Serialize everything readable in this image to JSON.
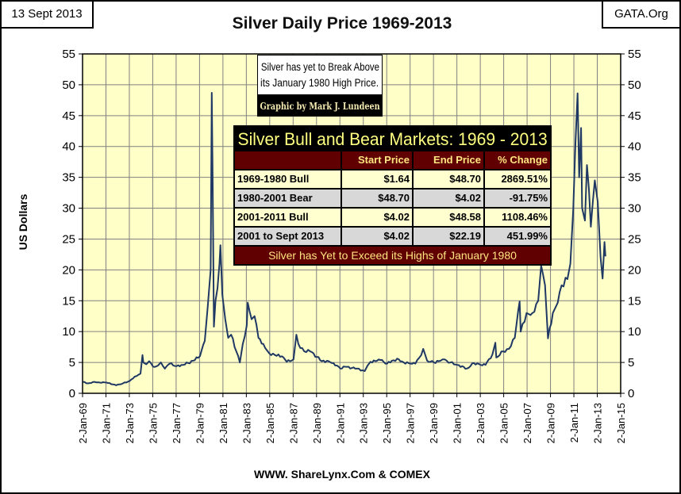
{
  "header": {
    "date": "13 Sept 2013",
    "source": "GATA.Org"
  },
  "chart_data": {
    "type": "line",
    "title": "Silver Daily Price 1969-2013",
    "ylabel": "US Dollars",
    "xlabel": "WWW. ShareLynx.Com & COMEX",
    "ylim": [
      0,
      55
    ],
    "yticks": [
      0,
      5,
      10,
      15,
      20,
      25,
      30,
      35,
      40,
      45,
      50,
      55
    ],
    "xlim": [
      "1969-01-02",
      "2015-01-02"
    ],
    "xticks": [
      "2-Jan-69",
      "2-Jan-71",
      "2-Jan-73",
      "2-Jan-75",
      "2-Jan-77",
      "2-Jan-79",
      "2-Jan-81",
      "2-Jan-83",
      "2-Jan-85",
      "2-Jan-87",
      "2-Jan-89",
      "2-Jan-91",
      "2-Jan-93",
      "2-Jan-95",
      "2-Jan-97",
      "2-Jan-99",
      "2-Jan-01",
      "2-Jan-03",
      "2-Jan-05",
      "2-Jan-07",
      "2-Jan-09",
      "2-Jan-11",
      "2-Jan-13",
      "2-Jan-15"
    ],
    "grid": true,
    "colors": {
      "line": "#1f3864",
      "plot_bg": "#ffffc8",
      "grid": "#808080"
    },
    "series": [
      {
        "points": [
          [
            "1969-01",
            1.85
          ],
          [
            "1969-06",
            1.6
          ],
          [
            "1970-01",
            1.85
          ],
          [
            "1970-06",
            1.75
          ],
          [
            "1971-01",
            1.75
          ],
          [
            "1971-11",
            1.3
          ],
          [
            "1972-06",
            1.6
          ],
          [
            "1973-01",
            2.0
          ],
          [
            "1973-06",
            2.7
          ],
          [
            "1973-12",
            3.2
          ],
          [
            "1974-02",
            6.2
          ],
          [
            "1974-03",
            5.0
          ],
          [
            "1974-06",
            4.7
          ],
          [
            "1974-09",
            5.2
          ],
          [
            "1975-01",
            4.3
          ],
          [
            "1975-06",
            4.5
          ],
          [
            "1975-09",
            5.0
          ],
          [
            "1976-01",
            4.0
          ],
          [
            "1976-06",
            4.8
          ],
          [
            "1977-01",
            4.4
          ],
          [
            "1977-06",
            4.6
          ],
          [
            "1978-01",
            4.9
          ],
          [
            "1978-06",
            5.3
          ],
          [
            "1979-01",
            6.0
          ],
          [
            "1979-06",
            8.5
          ],
          [
            "1979-09",
            14
          ],
          [
            "1979-12",
            20
          ],
          [
            "1980-01-18",
            48.7
          ],
          [
            "1980-02",
            35
          ],
          [
            "1980-03-27",
            10.8
          ],
          [
            "1980-05",
            15
          ],
          [
            "1980-07",
            17
          ],
          [
            "1980-09",
            21
          ],
          [
            "1980-10",
            24
          ],
          [
            "1980-12",
            16
          ],
          [
            "1981-03",
            12
          ],
          [
            "1981-06",
            9
          ],
          [
            "1981-09",
            9.5
          ],
          [
            "1982-06",
            5.0
          ],
          [
            "1982-09",
            8
          ],
          [
            "1983-01",
            11
          ],
          [
            "1983-02",
            14.7
          ],
          [
            "1983-06",
            12
          ],
          [
            "1983-09",
            12.5
          ],
          [
            "1984-01",
            9
          ],
          [
            "1984-06",
            8
          ],
          [
            "1984-12",
            6.5
          ],
          [
            "1985-06",
            6.2
          ],
          [
            "1986-01",
            6
          ],
          [
            "1986-06",
            5.1
          ],
          [
            "1987-01",
            5.5
          ],
          [
            "1987-04",
            9.5
          ],
          [
            "1987-06",
            8
          ],
          [
            "1987-12",
            6.8
          ],
          [
            "1988-06",
            6.8
          ],
          [
            "1989-01",
            5.9
          ],
          [
            "1989-06",
            5.2
          ],
          [
            "1990-01",
            5.2
          ],
          [
            "1990-06",
            4.9
          ],
          [
            "1991-01",
            4.0
          ],
          [
            "1991-06",
            4.3
          ],
          [
            "1992-01",
            4.1
          ],
          [
            "1992-06",
            4.0
          ],
          [
            "1993-02",
            3.6
          ],
          [
            "1993-05",
            4.5
          ],
          [
            "1993-08",
            5.1
          ],
          [
            "1994-01",
            5.2
          ],
          [
            "1994-06",
            5.4
          ],
          [
            "1995-01",
            4.8
          ],
          [
            "1995-06",
            5.3
          ],
          [
            "1996-01",
            5.5
          ],
          [
            "1996-06",
            5.0
          ],
          [
            "1997-01",
            4.8
          ],
          [
            "1997-06",
            4.8
          ],
          [
            "1997-12",
            6.2
          ],
          [
            "1998-02",
            7.2
          ],
          [
            "1998-06",
            5.3
          ],
          [
            "1999-01",
            5.0
          ],
          [
            "1999-06",
            5.2
          ],
          [
            "1999-10",
            5.5
          ],
          [
            "2000-06",
            5.0
          ],
          [
            "2001-01",
            4.6
          ],
          [
            "2001-11",
            4.02
          ],
          [
            "2002-06",
            4.9
          ],
          [
            "2003-01",
            4.6
          ],
          [
            "2003-06",
            4.6
          ],
          [
            "2004-01",
            6.3
          ],
          [
            "2004-04",
            8.2
          ],
          [
            "2004-05",
            5.8
          ],
          [
            "2004-12",
            6.8
          ],
          [
            "2005-06",
            7.2
          ],
          [
            "2005-12",
            9
          ],
          [
            "2006-05",
            14.9
          ],
          [
            "2006-06",
            10
          ],
          [
            "2006-12",
            13
          ],
          [
            "2007-06",
            13
          ],
          [
            "2007-12",
            15
          ],
          [
            "2008-03",
            20.7
          ],
          [
            "2008-07",
            17.5
          ],
          [
            "2008-10",
            8.9
          ],
          [
            "2009-03",
            13
          ],
          [
            "2009-06",
            14
          ],
          [
            "2009-12",
            17.5
          ],
          [
            "2010-06",
            18.5
          ],
          [
            "2010-09",
            21
          ],
          [
            "2010-12",
            30
          ],
          [
            "2011-04-28",
            48.6
          ],
          [
            "2011-06",
            35
          ],
          [
            "2011-08",
            43
          ],
          [
            "2011-09",
            30
          ],
          [
            "2011-12",
            28
          ],
          [
            "2012-02",
            37
          ],
          [
            "2012-06",
            27
          ],
          [
            "2012-10",
            34.5
          ],
          [
            "2013-01",
            31
          ],
          [
            "2013-04",
            22
          ],
          [
            "2013-06",
            18.6
          ],
          [
            "2013-08",
            24.5
          ],
          [
            "2013-09-13",
            22.19
          ]
        ]
      }
    ]
  },
  "annotation": {
    "line1": "Silver has yet to Break Above",
    "line2": "its January 1980 High Price.",
    "credit": "Graphic by Mark J. Lundeen"
  },
  "table": {
    "title": "Silver Bull and Bear Markets: 1969 - 2013",
    "headers": [
      "",
      "Start Price",
      "End Price",
      "% Change"
    ],
    "rows": [
      [
        "1969-1980 Bull",
        "$1.64",
        "$48.70",
        "2869.51%"
      ],
      [
        "1980-2001 Bear",
        "$48.70",
        "$4.02",
        "-91.75%"
      ],
      [
        "2001-2011 Bull",
        "$4.02",
        "$48.58",
        "1108.46%"
      ],
      [
        "2001 to Sept 2013",
        "$4.02",
        "$22.19",
        "451.99%"
      ]
    ],
    "footer": "Silver has Yet to Exceed its Highs of January 1980"
  }
}
